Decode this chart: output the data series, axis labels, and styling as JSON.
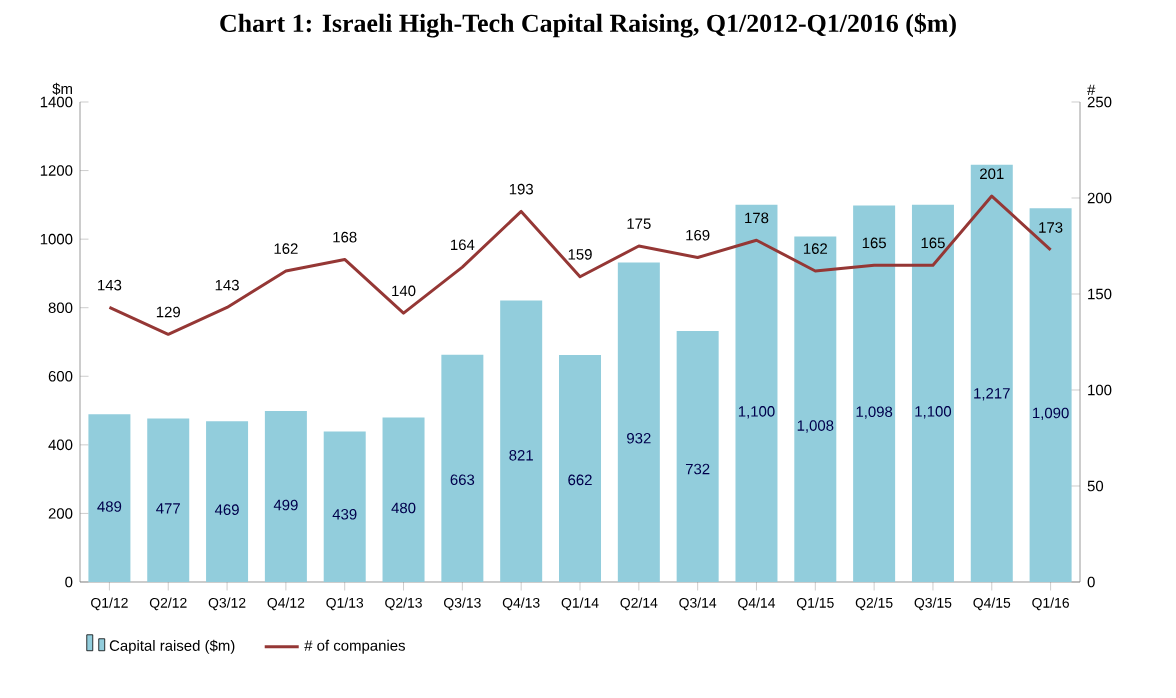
{
  "chart_data": {
    "type": "bar",
    "title": "Chart 1: Israeli High-Tech Capital Raising, Q1/2012-Q1/2016 ($m)",
    "ylabel": "$m",
    "y2label": "#",
    "categories": [
      "Q1/12",
      "Q2/12",
      "Q3/12",
      "Q4/12",
      "Q1/13",
      "Q2/13",
      "Q3/13",
      "Q4/13",
      "Q1/14",
      "Q2/14",
      "Q3/14",
      "Q4/14",
      "Q1/15",
      "Q2/15",
      "Q3/15",
      "Q4/15",
      "Q1/16"
    ],
    "series": [
      {
        "name": "Capital raised ($m)",
        "color": "#92cddc",
        "values": [
          489,
          477,
          469,
          499,
          439,
          480,
          663,
          821,
          662,
          932,
          732,
          1100,
          1008,
          1098,
          1100,
          1217,
          1090
        ],
        "value_labels": [
          "489",
          "477",
          "469",
          "499",
          "439",
          "480",
          "663",
          "821",
          "662",
          "932",
          "732",
          "1,100",
          "1,008",
          "1,098",
          "1,100",
          "1,217",
          "1,090"
        ]
      },
      {
        "name": "# of companies",
        "type": "line",
        "axis": "y2",
        "color": "#953735",
        "values": [
          143,
          129,
          143,
          162,
          168,
          140,
          164,
          193,
          159,
          175,
          169,
          178,
          162,
          165,
          165,
          201,
          173
        ],
        "value_labels": [
          "143",
          "129",
          "143",
          "162",
          "168",
          "140",
          "164",
          "193",
          "159",
          "175",
          "169",
          "178",
          "162",
          "165",
          "165",
          "201",
          "173"
        ]
      }
    ],
    "ylim": [
      0,
      1400
    ],
    "yticks": [
      0,
      200,
      400,
      600,
      800,
      1000,
      1200,
      1400
    ],
    "y2lim": [
      0,
      250
    ],
    "y2ticks": [
      0,
      50,
      100,
      150,
      200,
      250
    ],
    "legend": "bottom left",
    "grid": false
  }
}
